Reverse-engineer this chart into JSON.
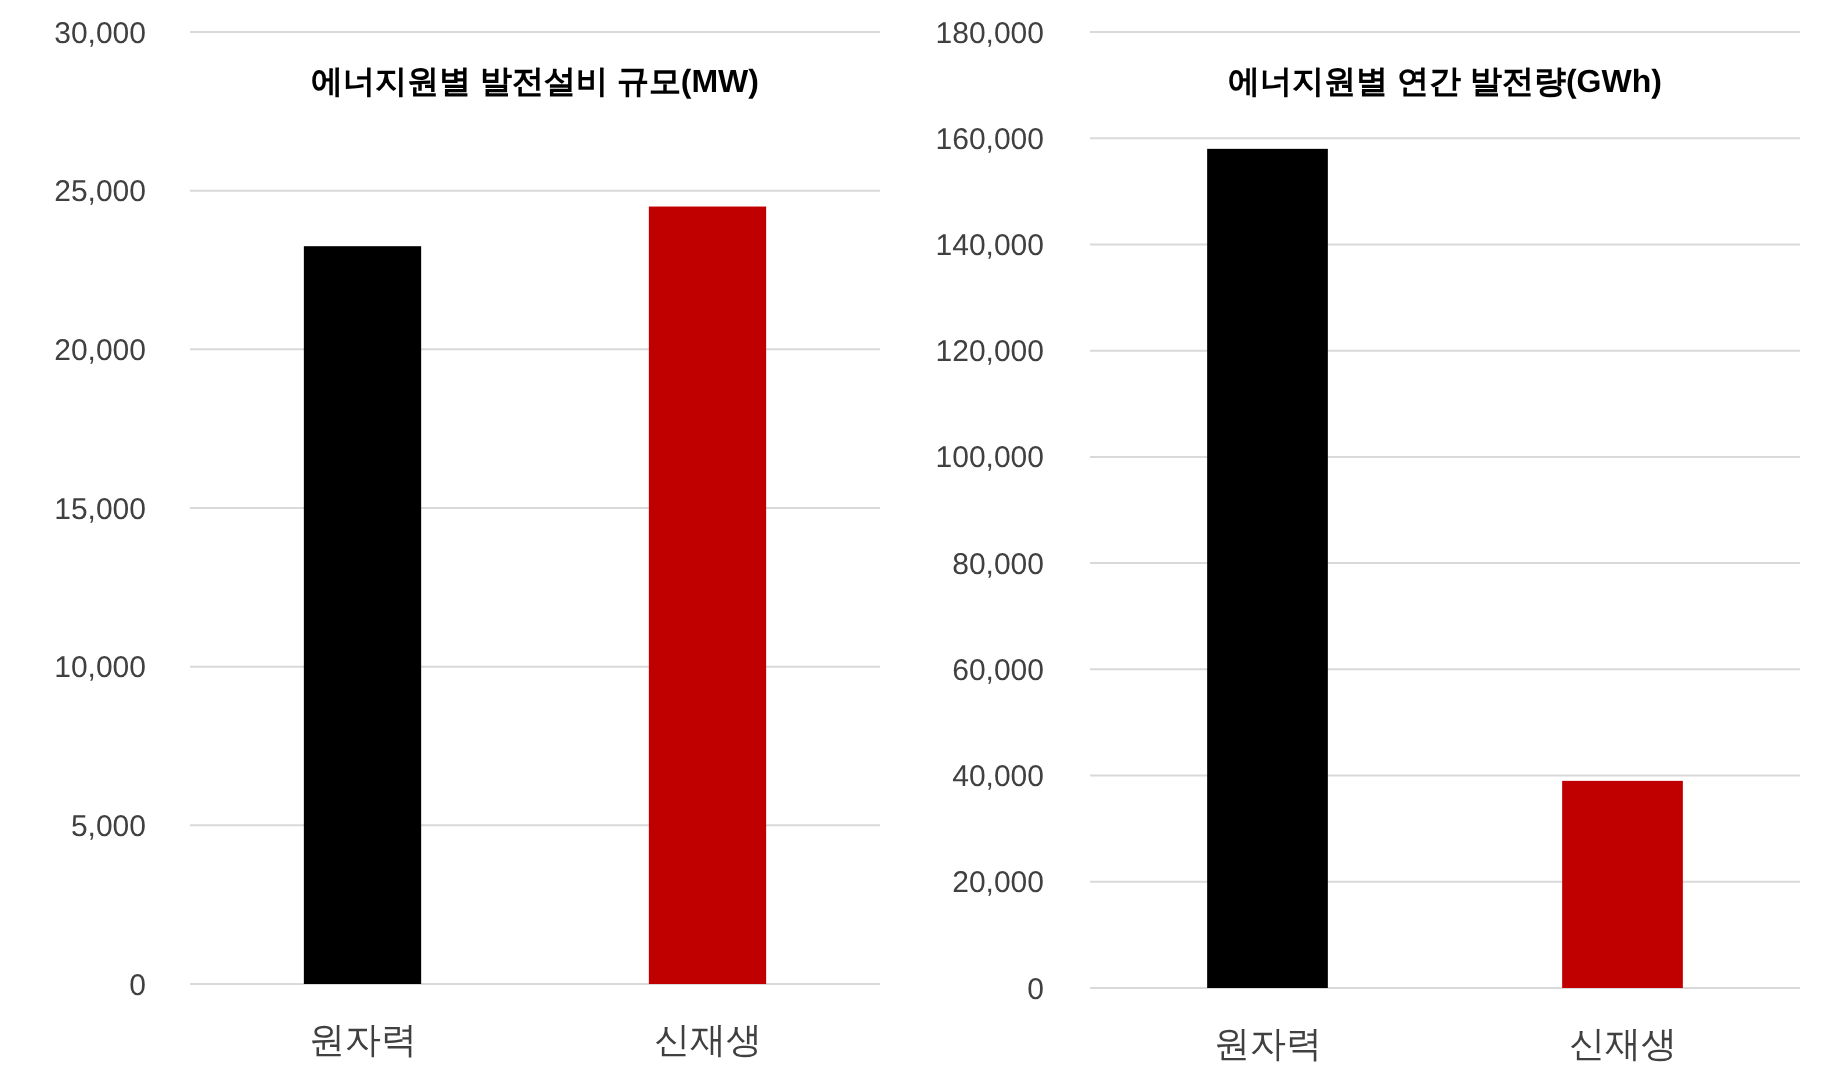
{
  "chart_data": [
    {
      "type": "bar",
      "title": "에너지원별 발전설비 규모(MW)",
      "categories": [
        "원자력",
        "신재생"
      ],
      "values": [
        23250,
        24500
      ],
      "colors": [
        "#000000",
        "#c00000"
      ],
      "ylim": [
        0,
        30000
      ],
      "yticks": [
        {
          "value": 0,
          "label": "0"
        },
        {
          "value": 5000,
          "label": "5,000"
        },
        {
          "value": 10000,
          "label": "10,000"
        },
        {
          "value": 15000,
          "label": "15,000"
        },
        {
          "value": 20000,
          "label": "20,000"
        },
        {
          "value": 25000,
          "label": "25,000"
        },
        {
          "value": 30000,
          "label": "30,000"
        }
      ],
      "grid": "y"
    },
    {
      "type": "bar",
      "title": "에너지원별 연간 발전량(GWh)",
      "categories": [
        "원자력",
        "신재생"
      ],
      "values": [
        158000,
        39000
      ],
      "colors": [
        "#000000",
        "#c00000"
      ],
      "ylim": [
        0,
        180000
      ],
      "yticks": [
        {
          "value": 0,
          "label": "0"
        },
        {
          "value": 20000,
          "label": "20,000"
        },
        {
          "value": 40000,
          "label": "40,000"
        },
        {
          "value": 60000,
          "label": "60,000"
        },
        {
          "value": 80000,
          "label": "80,000"
        },
        {
          "value": 100000,
          "label": "100,000"
        },
        {
          "value": 120000,
          "label": "120,000"
        },
        {
          "value": 140000,
          "label": "140,000"
        },
        {
          "value": 160000,
          "label": "160,000"
        },
        {
          "value": 180000,
          "label": "180,000"
        }
      ],
      "grid": "y"
    }
  ]
}
